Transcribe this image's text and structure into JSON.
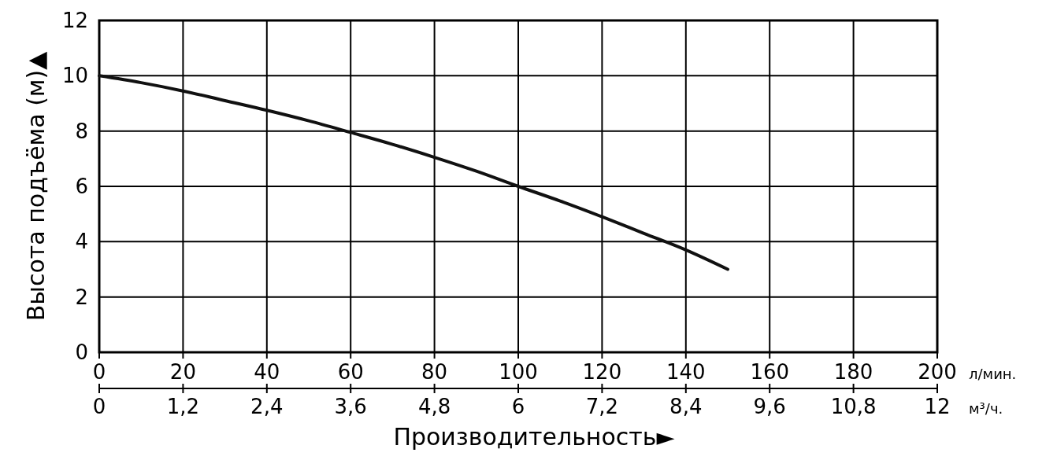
{
  "chart_data": {
    "type": "line",
    "xlabel": "Производительность►",
    "ylabel": "Высота подъёма (м)▲",
    "x": [
      0,
      10,
      20,
      30,
      40,
      50,
      60,
      70,
      80,
      90,
      100,
      110,
      120,
      130,
      140,
      150
    ],
    "series": [
      {
        "color": "#111111",
        "values": [
          10,
          9.75,
          9.45,
          9.1,
          8.75,
          8.37,
          7.95,
          7.52,
          7.05,
          6.55,
          6.0,
          5.47,
          4.9,
          4.3,
          3.7,
          3.0
        ]
      }
    ],
    "xlim": [
      0,
      200
    ],
    "xticks": [
      0,
      20,
      40,
      60,
      80,
      100,
      120,
      140,
      160,
      180,
      200
    ],
    "x2lim": [
      0,
      12
    ],
    "x2ticks": [
      0,
      {
        "value": 1.2,
        "label": "1,2"
      },
      {
        "value": 2.4,
        "label": "2,4"
      },
      {
        "value": 3.6,
        "label": "3,6"
      },
      {
        "value": 4.8,
        "label": "4,8"
      },
      6,
      {
        "value": 7.2,
        "label": "7,2"
      },
      {
        "value": 8.4,
        "label": "8,4"
      },
      {
        "value": 9.6,
        "label": "9,6"
      },
      {
        "value": 10.8,
        "label": "10,8"
      },
      12
    ],
    "ylim": [
      0,
      12
    ],
    "yticks": [
      0,
      2,
      4,
      6,
      8,
      10,
      12
    ],
    "grid": true,
    "marker": "none",
    "line_style": "solid",
    "annotations": [
      "л/мин.",
      "м³/ч."
    ]
  }
}
